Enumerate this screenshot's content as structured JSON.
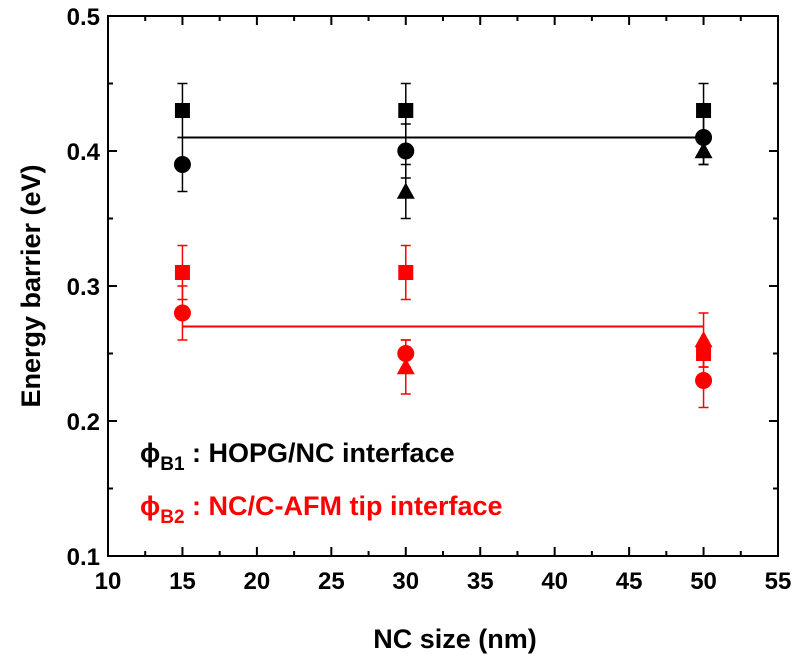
{
  "chart_data": {
    "type": "scatter",
    "title": "",
    "xlabel": "NC size (nm)",
    "ylabel": "Energy barrier (eV)",
    "xlim": [
      10,
      55
    ],
    "ylim": [
      0.1,
      0.5
    ],
    "x_ticks": [
      10,
      15,
      20,
      25,
      30,
      35,
      40,
      45,
      50,
      55
    ],
    "y_ticks": [
      0.1,
      0.2,
      0.3,
      0.4,
      0.5
    ],
    "x_tick_labels": [
      "10",
      "15",
      "20",
      "25",
      "30",
      "35",
      "40",
      "45",
      "50",
      "55"
    ],
    "y_tick_labels": [
      "0.1",
      "0.2",
      "0.3",
      "0.4",
      "0.5"
    ],
    "grid": false,
    "series": [
      {
        "marker": "square",
        "color": "#000000",
        "x": [
          15,
          30,
          50
        ],
        "y": [
          0.43,
          0.43,
          0.43
        ],
        "err": [
          0.02,
          0.02,
          0.02
        ]
      },
      {
        "marker": "circle",
        "color": "#000000",
        "x": [
          15,
          30,
          50
        ],
        "y": [
          0.39,
          0.4,
          0.41
        ],
        "err": [
          0.02,
          0.02,
          0.02
        ]
      },
      {
        "marker": "triangle",
        "color": "#000000",
        "x": [
          30,
          50
        ],
        "y": [
          0.37,
          0.4
        ],
        "err": [
          0.02,
          0.01
        ]
      },
      {
        "marker": "square",
        "color": "#ff0000",
        "x": [
          15,
          30,
          50
        ],
        "y": [
          0.31,
          0.31,
          0.25
        ],
        "err": [
          0.02,
          0.02,
          0.01
        ]
      },
      {
        "marker": "circle",
        "color": "#ff0000",
        "x": [
          15,
          30,
          50
        ],
        "y": [
          0.28,
          0.25,
          0.23
        ],
        "err": [
          0.02,
          0.01,
          0.02
        ]
      },
      {
        "marker": "triangle",
        "color": "#ff0000",
        "x": [
          30,
          50
        ],
        "y": [
          0.24,
          0.26
        ],
        "err": [
          0.02,
          0.02
        ]
      }
    ],
    "fit_lines": [
      {
        "color": "#000000",
        "x": [
          15,
          50
        ],
        "y": [
          0.41,
          0.41
        ]
      },
      {
        "color": "#ff0000",
        "x": [
          15,
          50
        ],
        "y": [
          0.27,
          0.27
        ]
      }
    ],
    "annotations": [
      {
        "symbol": "ϕ",
        "subscript": "B1",
        "text": " : HOPG/NC interface",
        "color": "#000000"
      },
      {
        "symbol": "ϕ",
        "subscript": "B2",
        "text": " : NC/C-AFM tip interface",
        "color": "#ff0000"
      }
    ]
  }
}
